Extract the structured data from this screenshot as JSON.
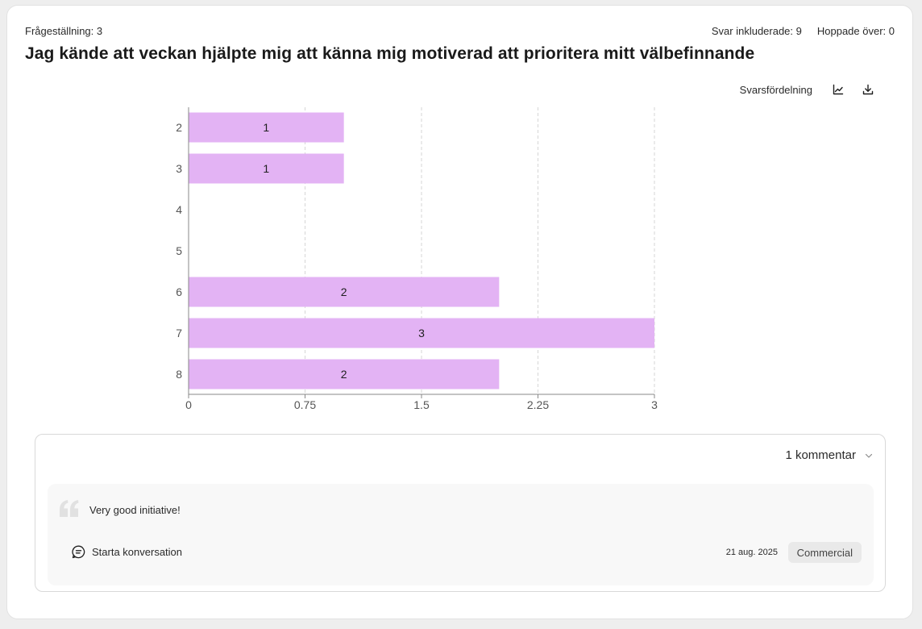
{
  "header": {
    "question_number": "Frågeställning: 3",
    "responses_included": "Svar inkluderade: 9",
    "skipped": "Hoppade över: 0",
    "title": "Jag kände att veckan hjälpte mig att känna mig motiverad att prioritera mitt välbefinnande"
  },
  "toolbar": {
    "chart_mode_label": "Svarsfördelning",
    "chart_icon": "line-chart-icon",
    "download_icon": "download-icon"
  },
  "chart_data": {
    "type": "bar",
    "orientation": "horizontal",
    "categories": [
      "2",
      "3",
      "4",
      "5",
      "6",
      "7",
      "8"
    ],
    "values": [
      1,
      1,
      0,
      0,
      2,
      3,
      2
    ],
    "data_labels": [
      "1",
      "1",
      "",
      "",
      "2",
      "3",
      "2"
    ],
    "x_ticks": [
      0,
      0.75,
      1.5,
      2.25,
      3
    ],
    "x_tick_labels": [
      "0",
      "0.75",
      "1.5",
      "2.25",
      "3"
    ],
    "xlim": [
      0,
      3
    ],
    "grid": "vertical dashed",
    "bar_color": "#e3b3f4"
  },
  "comments": {
    "count_label": "1 kommentar",
    "items": [
      {
        "text": "Very good initiative!",
        "start_conversation": "Starta konversation",
        "date": "21 aug. 2025",
        "segment": "Commercial"
      }
    ]
  }
}
